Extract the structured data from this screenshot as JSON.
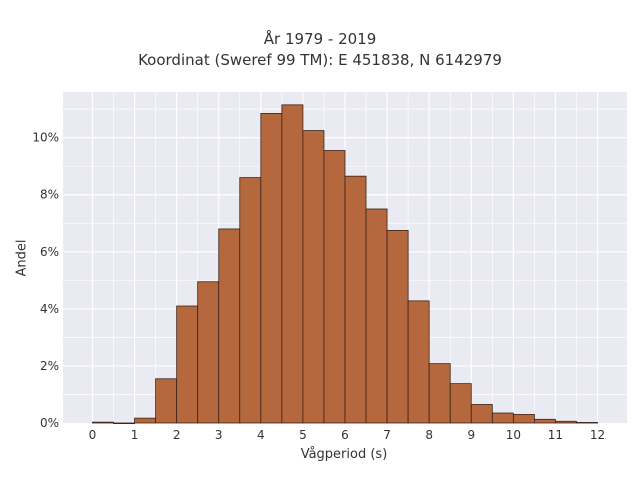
{
  "chart_data": {
    "type": "bar",
    "title": [
      "År 1979 - 2019",
      "Koordinat (Sweref 99 TM): E 451838, N 6142979"
    ],
    "xlabel": "Vågperiod (s)",
    "ylabel": "Andel",
    "x_ticks": [
      0,
      1,
      2,
      3,
      4,
      5,
      6,
      7,
      8,
      9,
      10,
      11,
      12
    ],
    "y_ticks": [
      0,
      2,
      4,
      6,
      8,
      10
    ],
    "y_tick_labels": [
      "0%",
      "2%",
      "4%",
      "6%",
      "8%",
      "10%"
    ],
    "xlim": [
      -0.7,
      12.7
    ],
    "ylim": [
      0,
      11.6
    ],
    "bin_width": 0.5,
    "bin_starts": [
      0,
      0.5,
      1,
      1.5,
      2,
      2.5,
      3,
      3.5,
      4,
      4.5,
      5,
      5.5,
      6,
      6.5,
      7,
      7.5,
      8,
      8.5,
      9,
      9.5,
      10,
      10.5,
      11,
      11.5
    ],
    "values": [
      0.03,
      0.0,
      0.17,
      1.55,
      4.1,
      4.95,
      6.8,
      8.6,
      10.85,
      11.15,
      10.25,
      9.55,
      8.65,
      7.5,
      6.75,
      4.28,
      2.08,
      1.38,
      0.65,
      0.35,
      0.3,
      0.13,
      0.06,
      0.02
    ],
    "grid": true,
    "bar_color": "#b5673e",
    "plot_background": "#eaeaf2"
  }
}
